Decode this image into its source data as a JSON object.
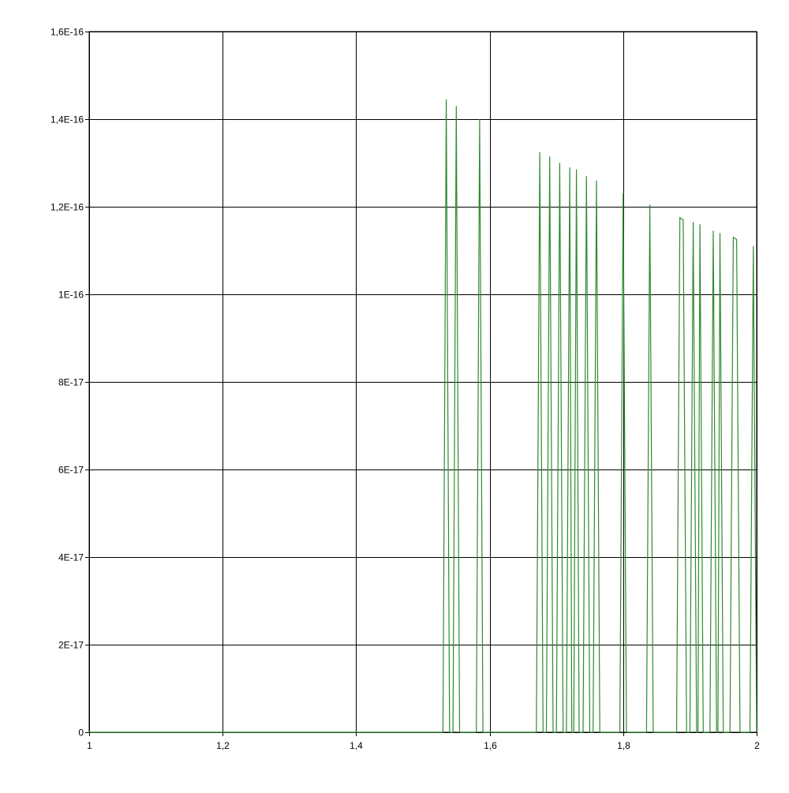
{
  "chart_data": {
    "type": "line",
    "title": "",
    "xlabel": "",
    "ylabel": "",
    "xlim": [
      1,
      2
    ],
    "ylim": [
      0,
      1.6e-16
    ],
    "grid": true,
    "legend": "none",
    "x_ticks": [
      1,
      1.2,
      1.4,
      1.6,
      1.8,
      2
    ],
    "x_tick_labels": [
      "1",
      "1,2",
      "1,4",
      "1,6",
      "1,8",
      "2"
    ],
    "y_ticks": [
      0,
      2e-17,
      4e-17,
      6e-17,
      8e-17,
      1e-16,
      1.2e-16,
      1.4e-16,
      1.6e-16
    ],
    "y_tick_labels": [
      "0",
      "2E-17",
      "4E-17",
      "6E-17",
      "8E-17",
      "1E-16",
      "1,2E-16",
      "1,4E-16",
      "1,6E-16"
    ],
    "series": [
      {
        "color": "#2e8b2e",
        "points": [
          [
            1.0,
            0
          ],
          [
            1.53,
            0
          ],
          [
            1.535,
            1.445e-16
          ],
          [
            1.54,
            0
          ],
          [
            1.545,
            0
          ],
          [
            1.55,
            1.43e-16
          ],
          [
            1.555,
            0
          ],
          [
            1.58,
            0
          ],
          [
            1.585,
            1.4e-16
          ],
          [
            1.59,
            0
          ],
          [
            1.67,
            0
          ],
          [
            1.675,
            1.325e-16
          ],
          [
            1.68,
            0
          ],
          [
            1.685,
            0
          ],
          [
            1.69,
            1.315e-16
          ],
          [
            1.695,
            0
          ],
          [
            1.7,
            0
          ],
          [
            1.705,
            1.3e-16
          ],
          [
            1.71,
            0
          ],
          [
            1.715,
            0
          ],
          [
            1.72,
            1.29e-16
          ],
          [
            1.723,
            0
          ],
          [
            1.726,
            0
          ],
          [
            1.73,
            1.285e-16
          ],
          [
            1.734,
            0
          ],
          [
            1.74,
            0
          ],
          [
            1.745,
            1.27e-16
          ],
          [
            1.75,
            0
          ],
          [
            1.755,
            0
          ],
          [
            1.76,
            1.26e-16
          ],
          [
            1.765,
            0
          ],
          [
            1.795,
            0
          ],
          [
            1.8,
            1.23e-16
          ],
          [
            1.805,
            0
          ],
          [
            1.835,
            0
          ],
          [
            1.84,
            1.205e-16
          ],
          [
            1.845,
            0
          ],
          [
            1.88,
            0
          ],
          [
            1.885,
            1.175e-16
          ],
          [
            1.89,
            1.17e-16
          ],
          [
            1.895,
            0
          ],
          [
            1.9,
            0
          ],
          [
            1.905,
            1.165e-16
          ],
          [
            1.91,
            0
          ],
          [
            1.912,
            0
          ],
          [
            1.915,
            1.16e-16
          ],
          [
            1.92,
            0
          ],
          [
            1.93,
            0
          ],
          [
            1.935,
            1.145e-16
          ],
          [
            1.94,
            0
          ],
          [
            1.942,
            0
          ],
          [
            1.945,
            1.14e-16
          ],
          [
            1.95,
            0
          ],
          [
            1.96,
            0
          ],
          [
            1.965,
            1.13e-16
          ],
          [
            1.97,
            1.125e-16
          ],
          [
            1.975,
            0
          ],
          [
            1.99,
            0
          ],
          [
            1.995,
            1.11e-16
          ],
          [
            2.0,
            0
          ]
        ]
      }
    ]
  }
}
